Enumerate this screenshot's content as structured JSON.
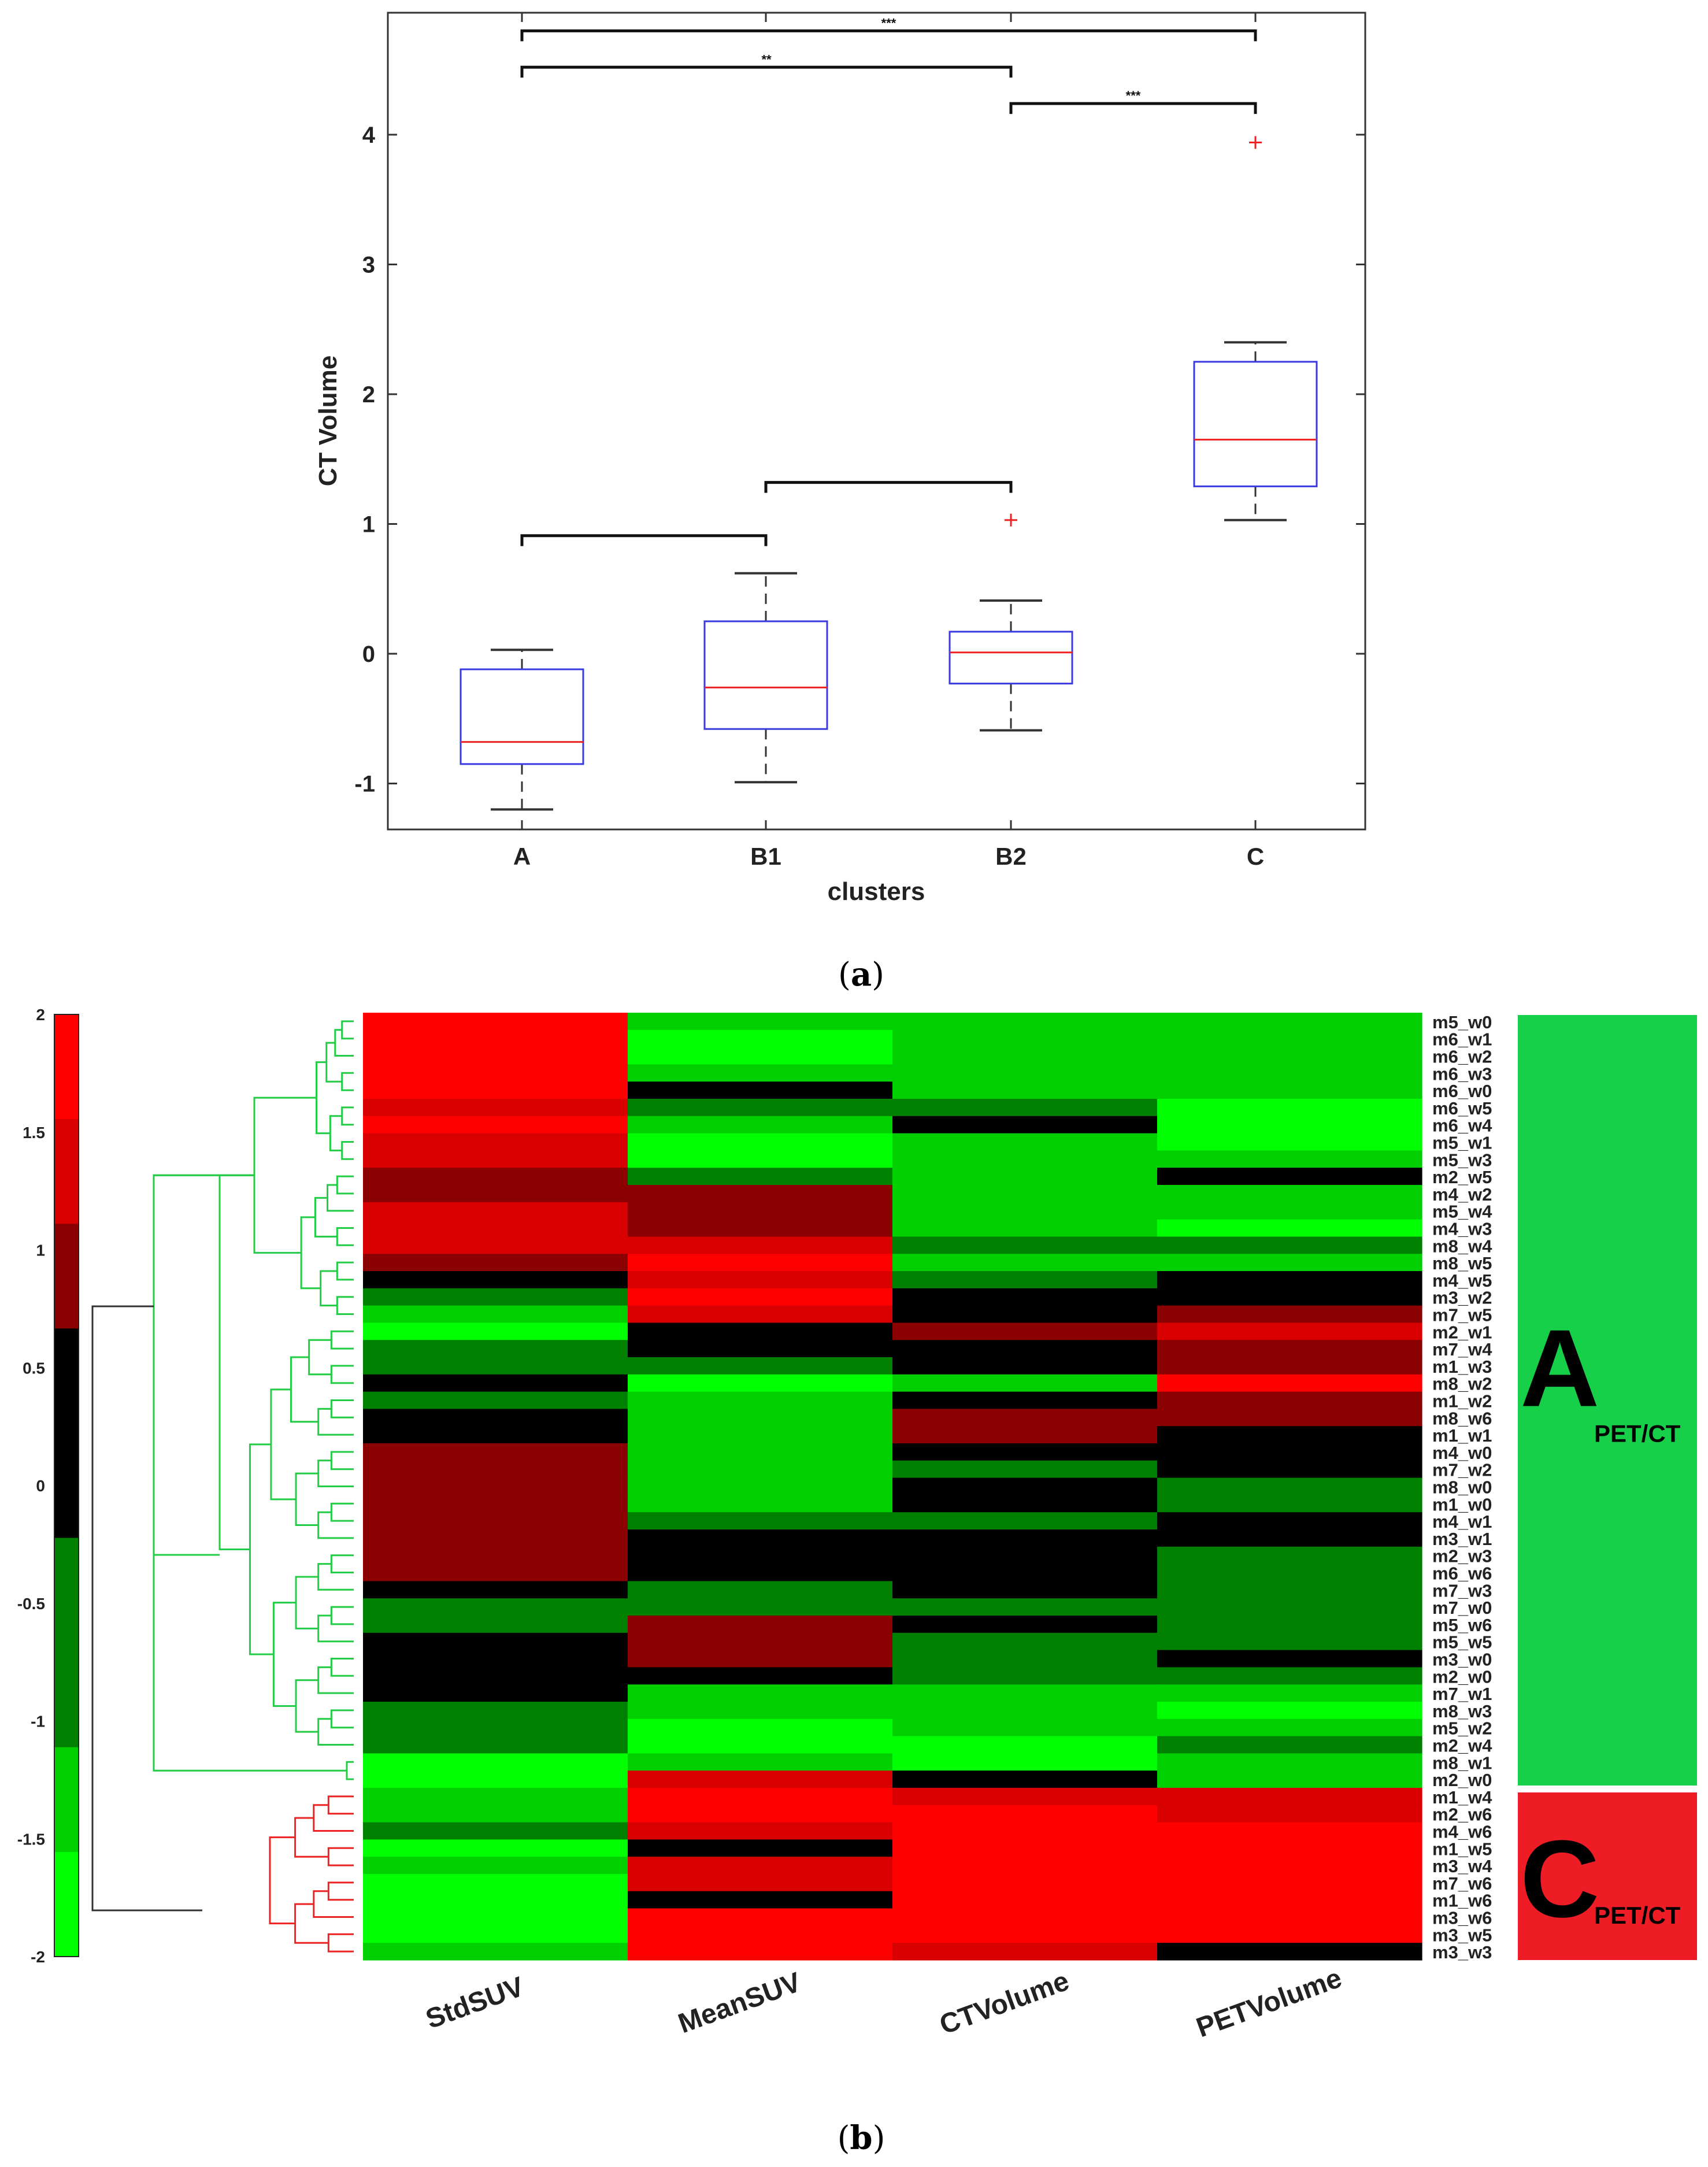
{
  "chart_data": [
    {
      "type": "boxplot",
      "panel_label": "(a)",
      "panel_letter": "a",
      "xlabel": "clusters",
      "ylabel": "CT Volume",
      "ylim": [
        -1.35,
        4.95
      ],
      "yticks": [
        -1,
        0,
        1,
        2,
        3,
        4
      ],
      "categories": [
        "A",
        "B1",
        "B2",
        "C"
      ],
      "boxes": [
        {
          "name": "A",
          "whisker_low": -1.2,
          "q1": -0.85,
          "median": -0.68,
          "q3": -0.12,
          "whisker_high": 0.03,
          "outliers": []
        },
        {
          "name": "B1",
          "whisker_low": -0.99,
          "q1": -0.58,
          "median": -0.26,
          "q3": 0.25,
          "whisker_high": 0.62,
          "outliers": []
        },
        {
          "name": "B2",
          "whisker_low": -0.59,
          "q1": -0.23,
          "median": 0.01,
          "q3": 0.17,
          "whisker_high": 0.41,
          "outliers": [
            1.03
          ]
        },
        {
          "name": "C",
          "whisker_low": 1.03,
          "q1": 1.29,
          "median": 1.65,
          "q3": 2.25,
          "whisker_high": 2.4,
          "outliers": [
            3.94
          ]
        }
      ],
      "significance": [
        {
          "from": "A",
          "to": "C",
          "y": 4.8,
          "label": "***"
        },
        {
          "from": "A",
          "to": "B2",
          "y": 4.52,
          "label": "**"
        },
        {
          "from": "B2",
          "to": "C",
          "y": 4.24,
          "label": "***"
        },
        {
          "from": "B1",
          "to": "B2",
          "y": 1.32,
          "label": ""
        },
        {
          "from": "A",
          "to": "B1",
          "y": 0.91,
          "label": ""
        }
      ]
    },
    {
      "type": "heatmap",
      "panel_label": "(b)",
      "panel_letter": "b",
      "columns": [
        "StdSUV",
        "MeanSUV",
        "CTVolume",
        "PETVolume"
      ],
      "colorbar": {
        "min": -2,
        "max": 2,
        "ticks": [
          "2",
          "1.5",
          "1",
          "0.5",
          "0",
          "-0.5",
          "-1",
          "-1.5",
          "-2"
        ]
      },
      "rows": [
        {
          "label": "m5_w0",
          "values": [
            2,
            -1.5,
            -1.5,
            -1.5
          ]
        },
        {
          "label": "m6_w1",
          "values": [
            2,
            -2,
            -1.5,
            -1.5
          ]
        },
        {
          "label": "m6_w2",
          "values": [
            2,
            -2,
            -1.5,
            -1.5
          ]
        },
        {
          "label": "m6_w3",
          "values": [
            2,
            -1.5,
            -1.5,
            -1.5
          ]
        },
        {
          "label": "m6_w0",
          "values": [
            2,
            0,
            -1.5,
            -1.5
          ]
        },
        {
          "label": "m6_w5",
          "values": [
            1.5,
            -1,
            -1,
            -2
          ]
        },
        {
          "label": "m6_w4",
          "values": [
            2,
            -1.5,
            0,
            -2
          ]
        },
        {
          "label": "m5_w1",
          "values": [
            1.5,
            -2,
            -1.5,
            -2
          ]
        },
        {
          "label": "m5_w3",
          "values": [
            1.5,
            -2,
            -1.5,
            -1.5
          ]
        },
        {
          "label": "m2_w5",
          "values": [
            1,
            -1,
            -1.5,
            0
          ]
        },
        {
          "label": "m4_w2",
          "values": [
            1,
            1,
            -1.5,
            -1.5
          ]
        },
        {
          "label": "m5_w4",
          "values": [
            1.5,
            1,
            -1.5,
            -1.5
          ]
        },
        {
          "label": "m4_w3",
          "values": [
            1.5,
            1,
            -1.5,
            -2
          ]
        },
        {
          "label": "m8_w4",
          "values": [
            1.5,
            1.5,
            -1,
            -1
          ]
        },
        {
          "label": "m8_w5",
          "values": [
            1,
            2,
            -1.5,
            -1.5
          ]
        },
        {
          "label": "m4_w5",
          "values": [
            0,
            1.5,
            -1,
            0
          ]
        },
        {
          "label": "m3_w2",
          "values": [
            -1,
            2,
            0,
            0
          ]
        },
        {
          "label": "m7_w5",
          "values": [
            -1.5,
            1.5,
            0,
            1
          ]
        },
        {
          "label": "m2_w1",
          "values": [
            -2,
            0,
            1,
            1.5
          ]
        },
        {
          "label": "m7_w4",
          "values": [
            -1,
            0,
            0,
            1
          ]
        },
        {
          "label": "m1_w3",
          "values": [
            -1,
            -1,
            0,
            1
          ]
        },
        {
          "label": "m8_w2",
          "values": [
            0,
            -2,
            -1.5,
            2
          ]
        },
        {
          "label": "m1_w2",
          "values": [
            -1,
            -1.5,
            0,
            1
          ]
        },
        {
          "label": "m8_w6",
          "values": [
            0,
            -1.5,
            1,
            1
          ]
        },
        {
          "label": "m1_w1",
          "values": [
            0,
            -1.5,
            1,
            0
          ]
        },
        {
          "label": "m4_w0",
          "values": [
            1,
            -1.5,
            0,
            0
          ]
        },
        {
          "label": "m7_w2",
          "values": [
            1,
            -1.5,
            -1,
            0
          ]
        },
        {
          "label": "m8_w0",
          "values": [
            1,
            -1.5,
            0,
            -1
          ]
        },
        {
          "label": "m1_w0",
          "values": [
            1,
            -1.5,
            0,
            -1
          ]
        },
        {
          "label": "m4_w1",
          "values": [
            1,
            -1,
            -1,
            0
          ]
        },
        {
          "label": "m3_w1",
          "values": [
            1,
            0,
            0,
            0
          ]
        },
        {
          "label": "m2_w3",
          "values": [
            1,
            0,
            0,
            -1
          ]
        },
        {
          "label": "m6_w6",
          "values": [
            1,
            0,
            0,
            -1
          ]
        },
        {
          "label": "m7_w3",
          "values": [
            0,
            -1,
            0,
            -1
          ]
        },
        {
          "label": "m7_w0",
          "values": [
            -1,
            -1,
            -1,
            -1
          ]
        },
        {
          "label": "m5_w6",
          "values": [
            -1,
            1,
            0,
            -1
          ]
        },
        {
          "label": "m5_w5",
          "values": [
            0,
            1,
            -1,
            -1
          ]
        },
        {
          "label": "m3_w0",
          "values": [
            0,
            1,
            -1,
            0
          ]
        },
        {
          "label": "m2_w0",
          "values": [
            0,
            0,
            -1,
            -1
          ]
        },
        {
          "label": "m7_w1",
          "values": [
            0,
            -1.5,
            -1.5,
            -1.5
          ]
        },
        {
          "label": "m8_w3",
          "values": [
            -1,
            -1.5,
            -1.5,
            -2
          ]
        },
        {
          "label": "m5_w2",
          "values": [
            -1,
            -2,
            -1.5,
            -1.5
          ]
        },
        {
          "label": "m2_w4",
          "values": [
            -1,
            -2,
            -2,
            -1
          ]
        },
        {
          "label": "m8_w1",
          "values": [
            -2,
            -1.5,
            -2,
            -1.5
          ]
        },
        {
          "label": "m2_w0",
          "values": [
            -2,
            1.5,
            0,
            -1.5
          ]
        },
        {
          "label": "m1_w4",
          "values": [
            -1.5,
            2,
            1.5,
            1.5
          ]
        },
        {
          "label": "m2_w6",
          "values": [
            -1.5,
            2,
            2,
            1.5
          ]
        },
        {
          "label": "m4_w6",
          "values": [
            -1,
            1.5,
            2,
            2
          ]
        },
        {
          "label": "m1_w5",
          "values": [
            -2,
            0,
            2,
            2
          ]
        },
        {
          "label": "m3_w4",
          "values": [
            -1.5,
            1.5,
            2,
            2
          ]
        },
        {
          "label": "m7_w6",
          "values": [
            -2,
            1.5,
            2,
            2
          ]
        },
        {
          "label": "m1_w6",
          "values": [
            -2,
            0,
            2,
            2
          ]
        },
        {
          "label": "m3_w6",
          "values": [
            -2,
            2,
            2,
            2
          ]
        },
        {
          "label": "m3_w5",
          "values": [
            -2,
            2,
            2,
            2
          ]
        },
        {
          "label": "m3_w3",
          "values": [
            -1.5,
            2,
            1.5,
            0
          ]
        }
      ],
      "clusters": [
        {
          "letter": "A",
          "subscript": "PET/CT",
          "color": "#16d04a",
          "rows": 45
        },
        {
          "letter": "C",
          "subscript": "PET/CT",
          "color": "#ee1c25",
          "rows": 10
        }
      ],
      "colors": {
        "dendrogram_A": "#22cc44",
        "dendrogram_C": "#ee2222",
        "dendrogram_root": "#333333"
      }
    }
  ]
}
